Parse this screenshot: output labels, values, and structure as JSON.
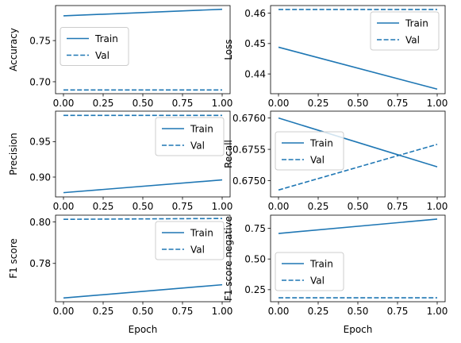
{
  "figure": {
    "line_color": "#1f77b4"
  },
  "chart_data": [
    {
      "type": "line",
      "ylabel": "Accuracy",
      "xlabel": "",
      "xlim": [
        -0.05,
        1.05
      ],
      "ylim": [
        0.6855,
        0.7925
      ],
      "x_ticks": [
        0.0,
        0.25,
        0.5,
        0.75,
        1.0
      ],
      "x_tick_labels": [
        "0.00",
        "0.25",
        "0.50",
        "0.75",
        "1.00"
      ],
      "y_ticks": [
        0.7,
        0.75
      ],
      "y_tick_labels": [
        "0.70",
        "0.75"
      ],
      "legend": "center-left",
      "series": [
        {
          "name": "Train",
          "style": "solid",
          "x": [
            0,
            1
          ],
          "values": [
            0.78,
            0.788
          ]
        },
        {
          "name": "Val",
          "style": "dashed",
          "x": [
            0,
            1
          ],
          "values": [
            0.69,
            0.69
          ]
        }
      ]
    },
    {
      "type": "line",
      "ylabel": "Loss",
      "xlabel": "",
      "xlim": [
        -0.05,
        1.05
      ],
      "ylim": [
        0.4335,
        0.4625
      ],
      "x_ticks": [
        0.0,
        0.25,
        0.5,
        0.75,
        1.0
      ],
      "x_tick_labels": [
        "0.00",
        "0.25",
        "0.50",
        "0.75",
        "1.00"
      ],
      "y_ticks": [
        0.44,
        0.45,
        0.46
      ],
      "y_tick_labels": [
        "0.44",
        "0.45",
        "0.46"
      ],
      "legend": "upper-right",
      "series": [
        {
          "name": "Train",
          "style": "solid",
          "x": [
            0,
            1
          ],
          "values": [
            0.4488,
            0.435
          ]
        },
        {
          "name": "Val",
          "style": "dashed",
          "x": [
            0,
            1
          ],
          "values": [
            0.4612,
            0.4612
          ]
        }
      ]
    },
    {
      "type": "line",
      "ylabel": "Precision",
      "xlabel": "",
      "xlim": [
        -0.05,
        1.05
      ],
      "ylim": [
        0.872,
        0.993
      ],
      "x_ticks": [
        0.0,
        0.25,
        0.5,
        0.75,
        1.0
      ],
      "x_tick_labels": [
        "0.00",
        "0.25",
        "0.50",
        "0.75",
        "1.00"
      ],
      "y_ticks": [
        0.9,
        0.95
      ],
      "y_tick_labels": [
        "0.90",
        "0.95"
      ],
      "legend": "upper-right",
      "series": [
        {
          "name": "Train",
          "style": "solid",
          "x": [
            0,
            1
          ],
          "values": [
            0.878,
            0.896
          ]
        },
        {
          "name": "Val",
          "style": "dashed",
          "x": [
            0,
            1
          ],
          "values": [
            0.987,
            0.987
          ]
        }
      ]
    },
    {
      "type": "line",
      "ylabel": "Recall",
      "xlabel": "",
      "xlim": [
        -0.05,
        1.05
      ],
      "ylim": [
        0.67474,
        0.67611
      ],
      "x_ticks": [
        0.0,
        0.25,
        0.5,
        0.75,
        1.0
      ],
      "x_tick_labels": [
        "0.00",
        "0.25",
        "0.50",
        "0.75",
        "1.00"
      ],
      "y_ticks": [
        0.675,
        0.6755,
        0.676
      ],
      "y_tick_labels": [
        "0.6750",
        "0.6755",
        "0.6760"
      ],
      "legend": "center-left",
      "series": [
        {
          "name": "Train",
          "style": "solid",
          "x": [
            0,
            1
          ],
          "values": [
            0.676,
            0.67522
          ]
        },
        {
          "name": "Val",
          "style": "dashed",
          "x": [
            0,
            1
          ],
          "values": [
            0.67485,
            0.67558
          ]
        }
      ]
    },
    {
      "type": "line",
      "ylabel": "F1 score",
      "xlabel": "Epoch",
      "xlim": [
        -0.05,
        1.05
      ],
      "ylim": [
        0.7615,
        0.8033
      ],
      "x_ticks": [
        0.0,
        0.25,
        0.5,
        0.75,
        1.0
      ],
      "x_tick_labels": [
        "0.00",
        "0.25",
        "0.50",
        "0.75",
        "1.00"
      ],
      "y_ticks": [
        0.78,
        0.8
      ],
      "y_tick_labels": [
        "0.78",
        "0.80"
      ],
      "legend": "upper-right",
      "series": [
        {
          "name": "Train",
          "style": "solid",
          "x": [
            0,
            1
          ],
          "values": [
            0.7633,
            0.7697
          ]
        },
        {
          "name": "Val",
          "style": "dashed",
          "x": [
            0,
            1
          ],
          "values": [
            0.8013,
            0.8017
          ]
        }
      ]
    },
    {
      "type": "line",
      "ylabel": "F1 score negative",
      "xlabel": "Epoch",
      "xlim": [
        -0.05,
        1.05
      ],
      "ylim": [
        0.152,
        0.857
      ],
      "x_ticks": [
        0.0,
        0.25,
        0.5,
        0.75,
        1.0
      ],
      "x_tick_labels": [
        "0.00",
        "0.25",
        "0.50",
        "0.75",
        "1.00"
      ],
      "y_ticks": [
        0.25,
        0.5,
        0.75
      ],
      "y_tick_labels": [
        "0.25",
        "0.50",
        "0.75"
      ],
      "legend": "lower-left",
      "series": [
        {
          "name": "Train",
          "style": "solid",
          "x": [
            0,
            1
          ],
          "values": [
            0.708,
            0.825
          ]
        },
        {
          "name": "Val",
          "style": "dashed",
          "x": [
            0,
            1
          ],
          "values": [
            0.184,
            0.184
          ]
        }
      ]
    }
  ]
}
